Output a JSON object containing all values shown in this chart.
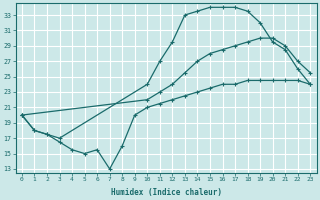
{
  "bg_color": "#cce8e8",
  "line_color": "#1a6b6b",
  "grid_color": "#ffffff",
  "xlabel": "Humidex (Indice chaleur)",
  "yticks": [
    13,
    15,
    17,
    19,
    21,
    23,
    25,
    27,
    29,
    31,
    33
  ],
  "xticks": [
    0,
    1,
    2,
    3,
    4,
    5,
    6,
    7,
    8,
    9,
    10,
    11,
    12,
    13,
    14,
    15,
    16,
    17,
    18,
    19,
    20,
    21,
    22,
    23
  ],
  "xlim": [
    -0.5,
    23.5
  ],
  "ylim": [
    12.5,
    34.5
  ],
  "curve1_x": [
    0,
    1,
    2,
    3,
    10,
    11,
    12,
    13,
    14,
    15,
    16,
    17,
    18,
    19,
    20,
    21,
    22,
    23
  ],
  "curve1_y": [
    20,
    18,
    17.5,
    17,
    24,
    27,
    29.5,
    33,
    33.5,
    34,
    34,
    34,
    33.5,
    32,
    29.5,
    28.5,
    26,
    24
  ],
  "curve2_x": [
    0,
    10,
    11,
    12,
    13,
    14,
    15,
    16,
    17,
    18,
    19,
    20,
    21,
    22,
    23
  ],
  "curve2_y": [
    20,
    22,
    23,
    24,
    25.5,
    27,
    28,
    28.5,
    29,
    29.5,
    30,
    30,
    29,
    27,
    25.5
  ],
  "curve3_x": [
    0,
    1,
    2,
    3,
    4,
    5,
    6,
    7,
    8,
    9,
    10,
    11,
    12,
    13,
    14,
    15,
    16,
    17,
    18,
    19,
    20,
    21,
    22,
    23
  ],
  "curve3_y": [
    20,
    18,
    17.5,
    16.5,
    15.5,
    15,
    15.5,
    13,
    16,
    20,
    21,
    21.5,
    22,
    22.5,
    23,
    23.5,
    24,
    24,
    24.5,
    24.5,
    24.5,
    24.5,
    24.5,
    24
  ],
  "figwidth": 3.2,
  "figheight": 2.0,
  "dpi": 100
}
